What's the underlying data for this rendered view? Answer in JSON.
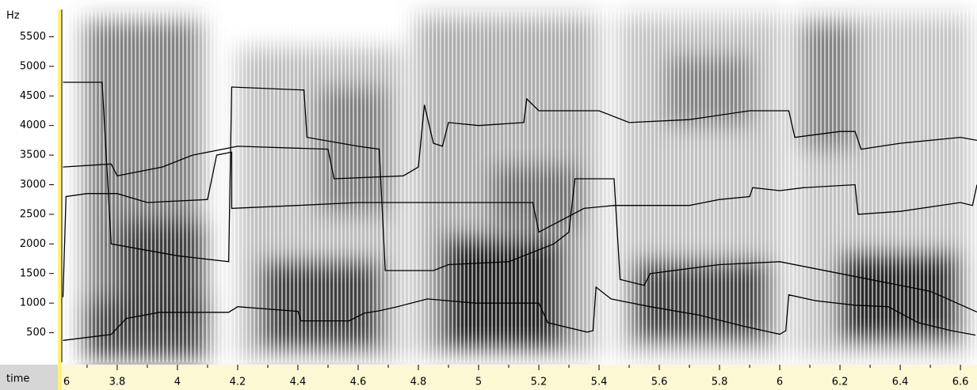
{
  "chart_data": {
    "type": "line",
    "ylabel": "Hz",
    "xlabel": "time",
    "xlim": [
      3.616,
      6.655
    ],
    "ylim": [
      0,
      5960
    ],
    "yticks": [
      500,
      1000,
      1500,
      2000,
      2500,
      3000,
      3500,
      4000,
      4500,
      5000,
      5500
    ],
    "xticks": [
      {
        "value": 3.6,
        "label": "6"
      },
      3.8,
      4.0,
      4.2,
      4.4,
      4.6,
      4.8,
      5.0,
      5.2,
      5.4,
      5.6,
      5.8,
      6.0,
      6.2,
      6.4,
      6.6
    ],
    "xminor_ticks": [
      3.7,
      3.9,
      4.1,
      4.3,
      4.5,
      4.7,
      4.9,
      5.1,
      5.3,
      5.5,
      5.7,
      5.9,
      6.1,
      6.3,
      6.5
    ],
    "series": [
      {
        "color": "#000000",
        "x": [
          3.62,
          3.78,
          3.83,
          3.94,
          4.17,
          4.2,
          4.4,
          4.41,
          4.57,
          4.62,
          4.67,
          4.73,
          4.83,
          4.99,
          5.2,
          5.23,
          5.36,
          5.38,
          5.39,
          5.44,
          5.57,
          5.73,
          5.88,
          6.0,
          6.02,
          6.03,
          6.12,
          6.25,
          6.36,
          6.46,
          6.57,
          6.65
        ],
        "values": [
          370,
          470,
          740,
          845,
          845,
          940,
          860,
          700,
          700,
          830,
          870,
          940,
          1070,
          1000,
          1000,
          670,
          510,
          535,
          1270,
          1070,
          940,
          800,
          610,
          475,
          535,
          1140,
          1040,
          965,
          940,
          670,
          535,
          460
        ]
      },
      {
        "color": "#000000",
        "x": [
          3.62,
          3.63,
          3.7,
          3.8,
          3.9,
          4.1,
          4.13,
          4.18,
          4.18,
          4.4,
          4.6,
          5.0,
          5.18,
          5.2,
          5.35,
          5.45,
          5.7,
          5.8,
          5.9,
          5.91,
          6.0,
          6.08,
          6.25,
          6.26,
          6.4,
          6.6,
          6.64,
          6.655
        ],
        "values": [
          1100,
          2800,
          2850,
          2850,
          2700,
          2750,
          3500,
          3550,
          2600,
          2650,
          2700,
          2700,
          2700,
          2200,
          2600,
          2650,
          2650,
          2750,
          2800,
          2950,
          2900,
          2950,
          3000,
          2500,
          2550,
          2700,
          2650,
          3000
        ]
      },
      {
        "color": "#000000",
        "x": [
          3.62,
          3.78,
          3.8,
          3.95,
          4.05,
          4.2,
          4.5,
          4.52,
          4.75,
          4.8,
          4.82,
          4.85,
          4.88,
          4.9,
          5.0,
          5.15,
          5.16,
          5.2,
          5.4,
          5.5,
          5.7,
          5.9,
          6.03,
          6.05,
          6.2,
          6.25,
          6.27,
          6.4,
          6.6,
          6.655
        ],
        "values": [
          3300,
          3350,
          3150,
          3300,
          3500,
          3650,
          3600,
          3100,
          3150,
          3300,
          4350,
          3700,
          3650,
          4050,
          4000,
          4050,
          4450,
          4250,
          4250,
          4050,
          4100,
          4250,
          4250,
          3800,
          3900,
          3900,
          3600,
          3700,
          3800,
          3750
        ]
      },
      {
        "color": "#000000",
        "x": [
          3.62,
          3.75,
          3.78,
          4.0,
          4.17,
          4.18,
          4.42,
          4.43,
          4.6,
          4.67,
          4.69,
          4.85,
          4.9,
          5.1,
          5.25,
          5.3,
          5.32,
          5.45,
          5.47,
          5.55,
          5.57,
          5.8,
          6.0,
          6.1,
          6.2,
          6.35,
          6.5,
          6.655
        ],
        "values": [
          4730,
          4730,
          2000,
          1800,
          1700,
          4650,
          4600,
          3800,
          3650,
          3600,
          1550,
          1550,
          1650,
          1700,
          2000,
          2200,
          3100,
          3100,
          1400,
          1300,
          1500,
          1650,
          1700,
          1600,
          1500,
          1350,
          1200,
          850
        ]
      }
    ]
  }
}
